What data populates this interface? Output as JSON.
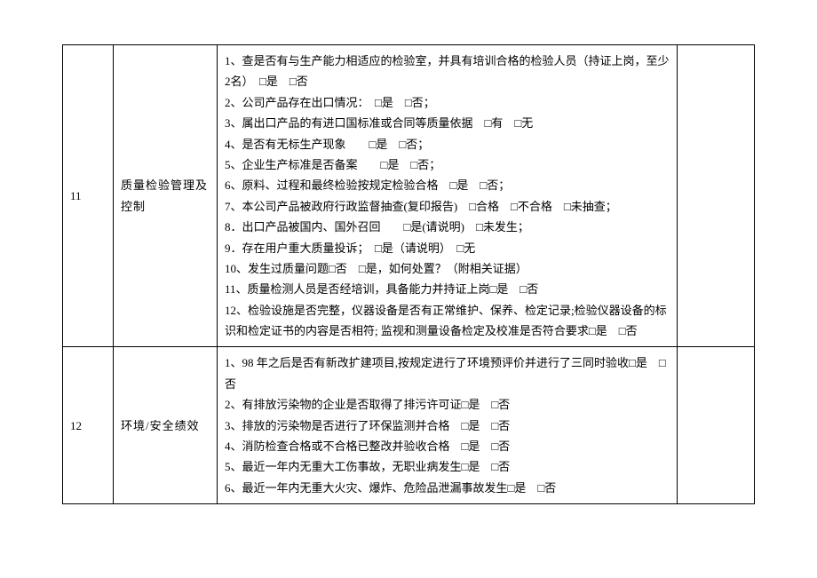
{
  "rows": [
    {
      "num": "11",
      "category": "质量检验管理及控制",
      "items": [
        "1、查是否有与生产能力相适应的检验室，并具有培训合格的检验人员（持证上岗，至少2名）　□是　□否",
        "2、公司产品存在出口情况：　□是　□否；",
        "3、属出口产品的有进口国标准或合同等质量依据　□有　□无",
        "4、是否有无标生产现象　　□是　□否；",
        "5、企业生产标准是否备案　　□是　□否；",
        "6、原料、过程和最终检验按规定检验合格　□是　□否；",
        "7、本公司产品被政府行政监督抽查(复印报告)　□合格　□不合格　□未抽查；",
        "8．出口产品被国内、国外召回　　□是(请说明)　□未发生；",
        "9．存在用户重大质量投诉；　□是（请说明）　□无",
        "10、发生过质量问题□否　□是，如何处置？（附相关证据）",
        "11、质量检测人员是否经培训，具备能力并持证上岗□是　□否",
        "12、检验设施是否完整，仪器设备是否有正常维护、保养、检定记录;检验仪器设备的标识和检定证书的内容是否相符; 监视和测量设备检定及校准是否符合要求□是　□否"
      ]
    },
    {
      "num": "12",
      "category": "环境/安全绩效",
      "items": [
        "1、98 年之后是否有新改扩建项目,按规定进行了环境预评价并进行了三同时验收□是　□否",
        "2、有排放污染物的企业是否取得了排污许可证□是　□否",
        "3、排放的污染物是否进行了环保监测并合格　□是　□否",
        "4、消防检查合格或不合格已整改并验收合格　□是　□否",
        "5、最近一年内无重大工伤事故，无职业病发生□是　□否",
        "6、最近一年内无重大火灾、爆炸、危险品泄漏事故发生□是　□否"
      ]
    }
  ]
}
